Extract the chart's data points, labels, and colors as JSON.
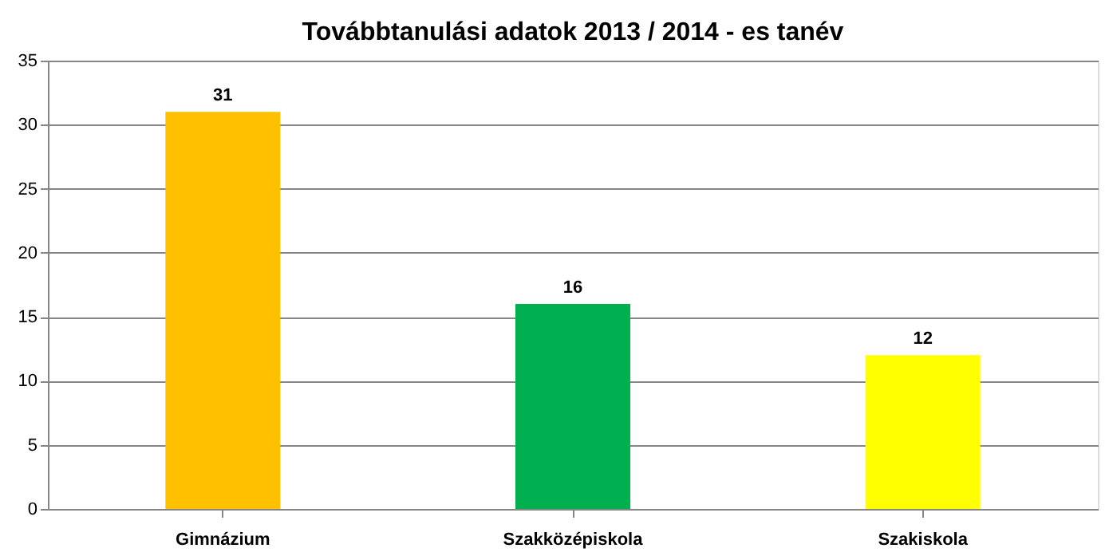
{
  "chart_data": {
    "type": "bar",
    "title": "Továbbtanulási adatok 2013 / 2014 - es tanév",
    "categories": [
      "Gimnázium",
      "Szakközépiskola",
      "Szakiskola"
    ],
    "values": [
      31,
      16,
      12
    ],
    "colors": [
      "#ffc000",
      "#00b050",
      "#ffff00"
    ],
    "ylim": [
      0,
      35
    ],
    "yticks": [
      0,
      5,
      10,
      15,
      20,
      25,
      30,
      35
    ],
    "grid": "y",
    "data_labels": true
  }
}
